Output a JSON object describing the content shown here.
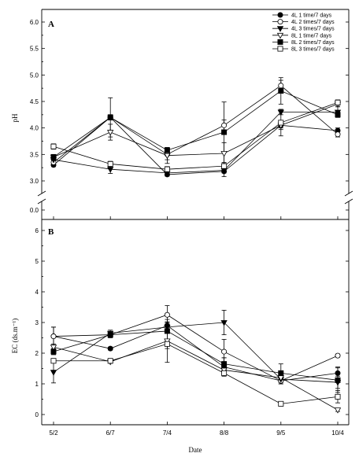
{
  "chart_data": [
    {
      "type": "line",
      "panel_label": "A",
      "xlabel": "",
      "ylabel": "pH",
      "categories": [
        "5/2",
        "6/7",
        "7/4",
        "8/8",
        "9/5",
        "10/4"
      ],
      "yticks": [
        "0.0",
        "3.0",
        "3.5",
        "4.0",
        "4.5",
        "5.0",
        "5.5",
        "6.0"
      ],
      "axis_break": true,
      "ylim": [
        3.0,
        6.0
      ],
      "legend_placement": "top-right",
      "grid": false,
      "series": [
        {
          "name": "4L 1 time/7 days",
          "marker": "circle-filled",
          "values": [
            3.3,
            4.2,
            3.12,
            3.18,
            4.05,
            3.95
          ],
          "err": [
            0.03,
            0.05,
            0.03,
            0.1,
            0.05,
            0.05
          ]
        },
        {
          "name": "4L 2 times/7 days",
          "marker": "circle-open",
          "values": [
            3.35,
            4.2,
            3.5,
            4.05,
            4.8,
            3.88
          ],
          "err": [
            0.04,
            0.05,
            0.1,
            0.1,
            0.1,
            0.05
          ]
        },
        {
          "name": "4L 3 times/7 days",
          "marker": "triangle-down-filled",
          "values": [
            3.4,
            3.22,
            3.15,
            3.2,
            4.3,
            4.3
          ],
          "err": [
            0.05,
            0.08,
            0.05,
            0.05,
            0.05,
            0.1
          ]
        },
        {
          "name": "8L 1 time/7 days",
          "marker": "triangle-down-open",
          "values": [
            3.45,
            3.92,
            3.48,
            3.52,
            4.05,
            4.45
          ],
          "err": [
            0.05,
            0.15,
            0.15,
            0.2,
            0.08,
            0.05
          ]
        },
        {
          "name": "8L 2 times/7 days",
          "marker": "square-filled",
          "values": [
            3.45,
            4.2,
            3.58,
            3.92,
            4.7,
            4.25
          ],
          "err": [
            0.04,
            0.37,
            0.05,
            0.57,
            0.25,
            0.05
          ]
        },
        {
          "name": "8L 3 times/7 days",
          "marker": "square-open",
          "values": [
            3.65,
            3.32,
            3.22,
            3.28,
            4.1,
            4.48
          ],
          "err": [
            0.05,
            0.05,
            0.05,
            0.05,
            0.25,
            0.05
          ]
        }
      ]
    },
    {
      "type": "line",
      "panel_label": "B",
      "xlabel": "Date",
      "ylabel": "EC (ds.m⁻¹)",
      "categories": [
        "5/2",
        "6/7",
        "7/4",
        "8/8",
        "9/5",
        "10/4"
      ],
      "yticks": [
        "0",
        "1",
        "2",
        "3",
        "4",
        "5",
        "6"
      ],
      "ylim": [
        -0.3,
        6.6
      ],
      "grid": false,
      "series": [
        {
          "name": "4L 1 time/7 days",
          "marker": "circle-filled",
          "values": [
            2.55,
            2.15,
            2.9,
            1.55,
            1.1,
            1.35
          ],
          "err": [
            0.3,
            0.05,
            0.1,
            0.3,
            0.1,
            0.2
          ]
        },
        {
          "name": "4L 2 times/7 days",
          "marker": "circle-open",
          "values": [
            2.55,
            2.6,
            3.25,
            2.05,
            1.1,
            1.92
          ],
          "err": [
            0.3,
            0.1,
            0.3,
            0.4,
            0.1,
            0.05
          ]
        },
        {
          "name": "4L 3 times/7 days",
          "marker": "triangle-down-filled",
          "values": [
            1.38,
            2.65,
            2.85,
            3.0,
            1.15,
            1.05
          ],
          "err": [
            0.35,
            0.1,
            0.1,
            0.4,
            0.1,
            0.2
          ]
        },
        {
          "name": "8L 1 time/7 days",
          "marker": "triangle-down-open",
          "values": [
            2.2,
            1.72,
            2.4,
            1.45,
            1.2,
            0.15
          ],
          "err": [
            0.1,
            0.05,
            0.7,
            0.1,
            0.1,
            0.05
          ]
        },
        {
          "name": "8L 2 times/7 days",
          "marker": "square-filled",
          "values": [
            2.05,
            2.6,
            2.72,
            1.65,
            1.35,
            1.12
          ],
          "err": [
            0.1,
            0.05,
            0.3,
            0.2,
            0.3,
            0.4
          ]
        },
        {
          "name": "8L 3 times/7 days",
          "marker": "square-open",
          "values": [
            1.75,
            1.75,
            2.3,
            1.35,
            0.35,
            0.58
          ],
          "err": [
            0.05,
            0.05,
            0.15,
            0.05,
            0.05,
            0.2
          ]
        }
      ]
    }
  ]
}
